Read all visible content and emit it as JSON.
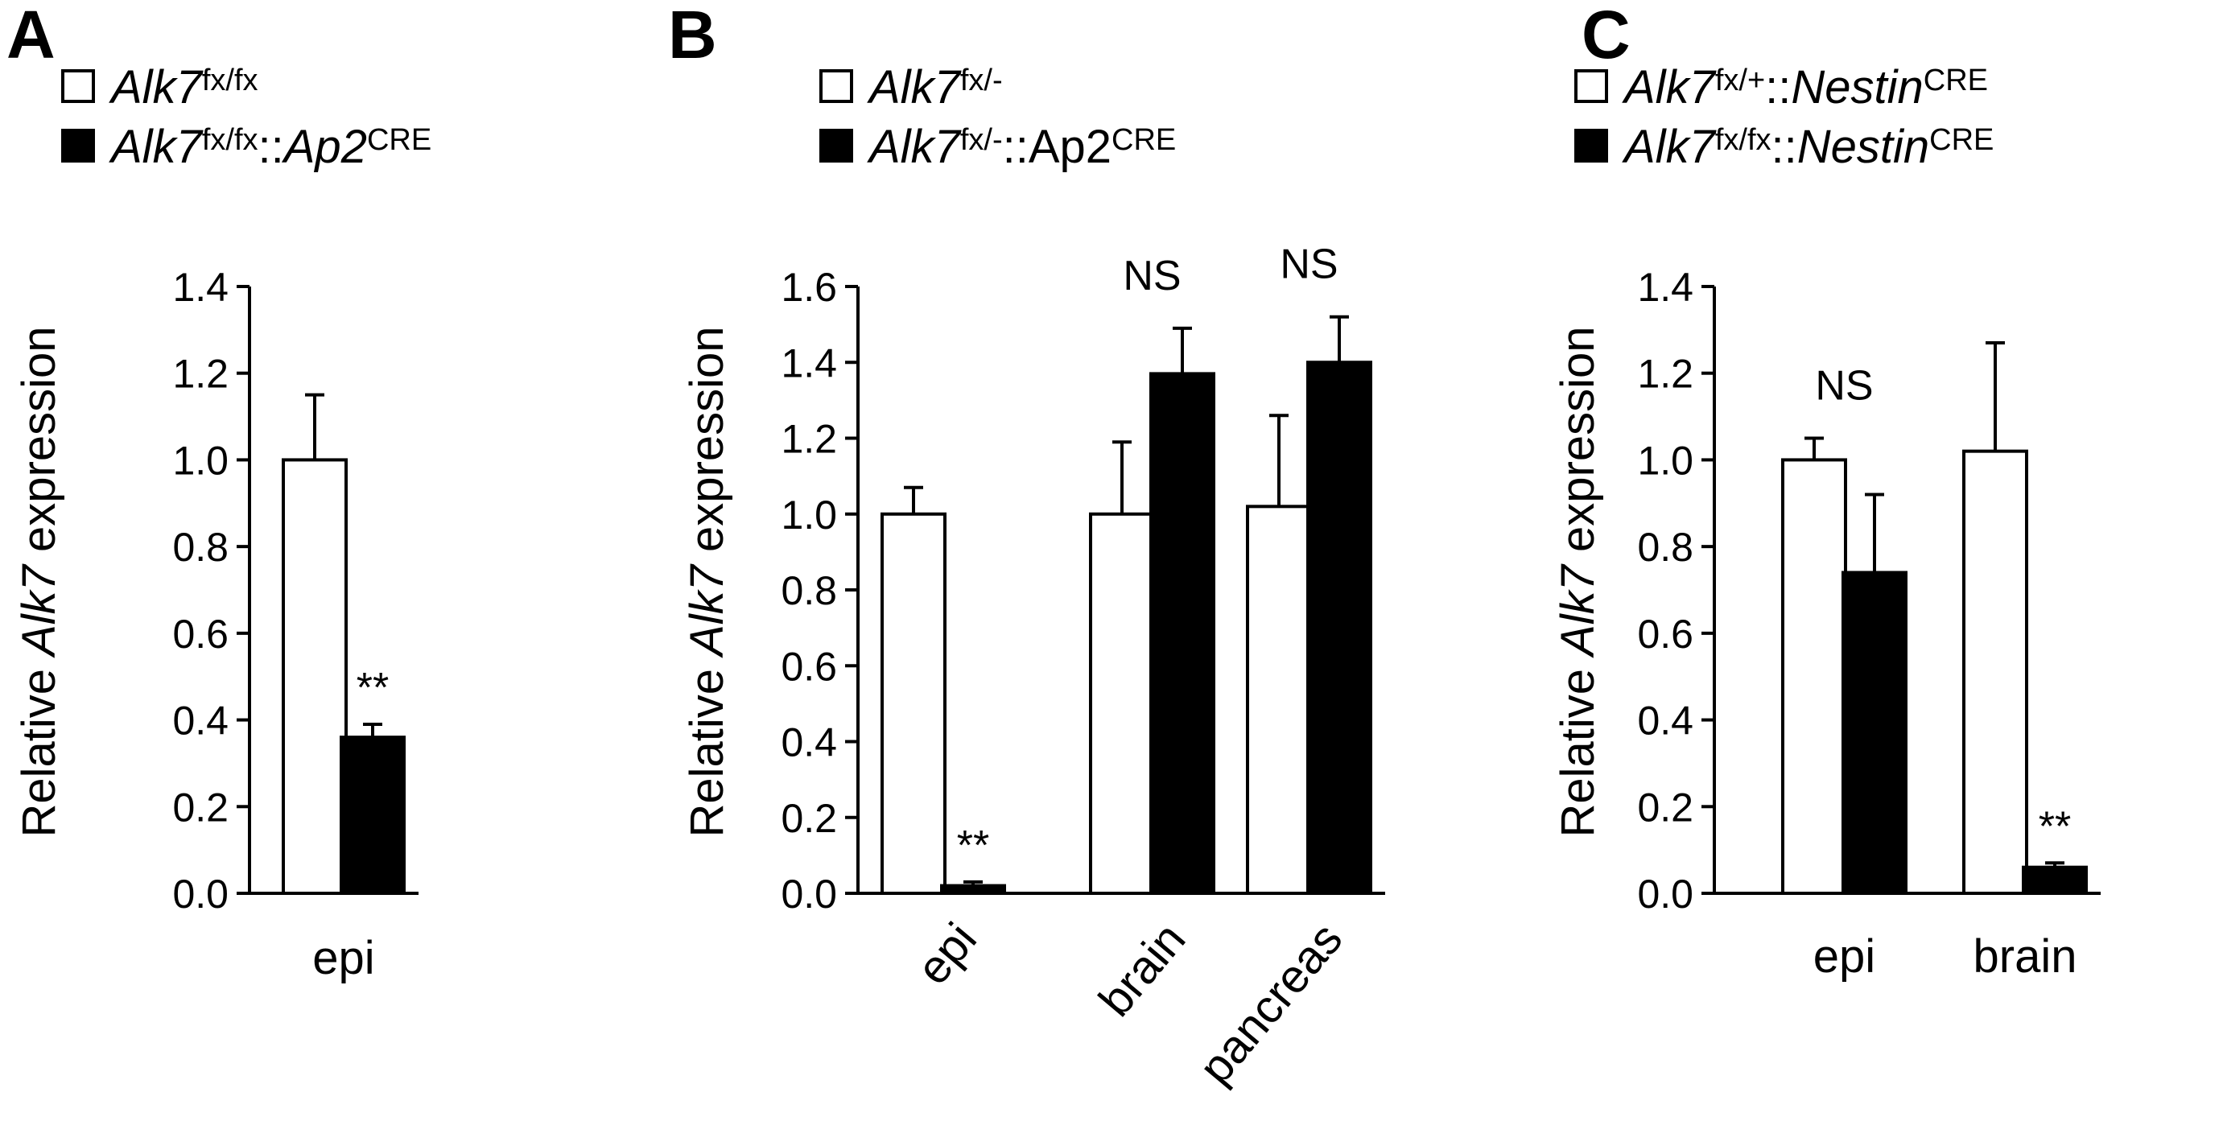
{
  "chart_data": [
    {
      "panel": "A",
      "type": "bar",
      "ylabel": {
        "pre": "Relative ",
        "gene": "Alk7",
        "post": " expression"
      },
      "ylim": [
        0,
        1.4
      ],
      "yticks": [
        "0.0",
        "0.2",
        "0.4",
        "0.6",
        "0.8",
        "1.0",
        "1.2",
        "1.4"
      ],
      "categories": [
        "epi"
      ],
      "rotated_categories": false,
      "series": [
        {
          "name": "Alk7fx/fx",
          "fill": "#ffffff",
          "values": [
            1.0
          ],
          "errors": [
            0.15
          ]
        },
        {
          "name": "Alk7fx/fx::Ap2CRE",
          "fill": "#000000",
          "values": [
            0.36
          ],
          "errors": [
            0.03
          ]
        }
      ],
      "legend": [
        [
          {
            "t": "Alk7",
            "i": true
          },
          {
            "t": "fx/fx",
            "sup": true
          }
        ],
        [
          {
            "t": "Alk7",
            "i": true
          },
          {
            "t": "fx/fx",
            "sup": true
          },
          {
            "t": "::"
          },
          {
            "t": "Ap2",
            "i": true
          },
          {
            "t": "CRE",
            "sup": true
          }
        ]
      ],
      "significance": [
        {
          "category": 0,
          "series": 1,
          "text": "**"
        }
      ]
    },
    {
      "panel": "B",
      "type": "bar",
      "ylabel": {
        "pre": "Relative ",
        "gene": "Alk7",
        "post": " expression"
      },
      "ylim": [
        0,
        1.6
      ],
      "yticks": [
        "0.0",
        "0.2",
        "0.4",
        "0.6",
        "0.8",
        "1.0",
        "1.2",
        "1.4",
        "1.6"
      ],
      "categories": [
        "epi",
        "brain",
        "pancreas"
      ],
      "rotated_categories": true,
      "series": [
        {
          "name": "Alk7fx/-",
          "fill": "#ffffff",
          "values": [
            1.0,
            1.0,
            1.02
          ],
          "errors": [
            0.07,
            0.19,
            0.24
          ]
        },
        {
          "name": "Alk7fx/-::Ap2CRE",
          "fill": "#000000",
          "values": [
            0.02,
            1.37,
            1.4
          ],
          "errors": [
            0.01,
            0.12,
            0.12
          ]
        }
      ],
      "legend": [
        [
          {
            "t": "Alk7",
            "i": true
          },
          {
            "t": "fx/-",
            "sup": true
          }
        ],
        [
          {
            "t": "Alk7",
            "i": true
          },
          {
            "t": "fx/-",
            "sup": true
          },
          {
            "t": "::Ap2"
          },
          {
            "t": "CRE",
            "sup": true
          }
        ]
      ],
      "significance": [
        {
          "category": 0,
          "series": 1,
          "text": "**"
        },
        {
          "category": 1,
          "text": "NS"
        },
        {
          "category": 2,
          "text": "NS"
        }
      ]
    },
    {
      "panel": "C",
      "type": "bar",
      "ylabel": {
        "pre": "Relative ",
        "gene": "Alk7",
        "post": " expression"
      },
      "ylim": [
        0,
        1.4
      ],
      "yticks": [
        "0.0",
        "0.2",
        "0.4",
        "0.6",
        "0.8",
        "1.0",
        "1.2",
        "1.4"
      ],
      "categories": [
        "epi",
        "brain"
      ],
      "rotated_categories": false,
      "series": [
        {
          "name": "Alk7fx/+::NestinCRE",
          "fill": "#ffffff",
          "values": [
            1.0,
            1.02
          ],
          "errors": [
            0.05,
            0.25
          ]
        },
        {
          "name": "Alk7fx/fx::NestinCRE",
          "fill": "#000000",
          "values": [
            0.74,
            0.06
          ],
          "errors": [
            0.18,
            0.01
          ]
        }
      ],
      "legend": [
        [
          {
            "t": "Alk7",
            "i": true
          },
          {
            "t": "fx/+",
            "sup": true
          },
          {
            "t": "::"
          },
          {
            "t": "Nestin",
            "i": true
          },
          {
            "t": "CRE",
            "sup": true
          }
        ],
        [
          {
            "t": "Alk7",
            "i": true
          },
          {
            "t": "fx/fx",
            "sup": true
          },
          {
            "t": "::"
          },
          {
            "t": "Nestin",
            "i": true
          },
          {
            "t": "CRE",
            "sup": true
          }
        ]
      ],
      "significance": [
        {
          "category": 0,
          "text": "NS"
        },
        {
          "category": 1,
          "series": 1,
          "text": "**"
        }
      ]
    }
  ]
}
